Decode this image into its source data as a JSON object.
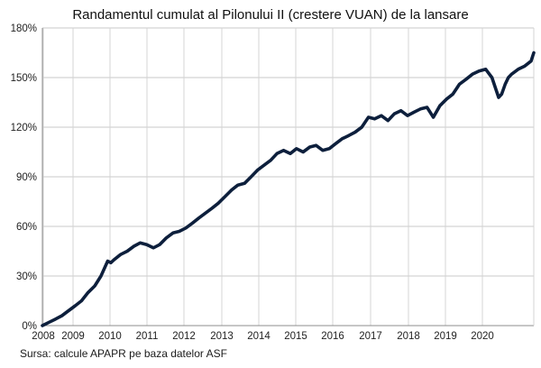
{
  "chart_data": {
    "type": "line",
    "title": "Randamentul cumulat al Pilonului II (crestere VUAN) de la lansare",
    "source": "Sursa: calcule APAPR pe baza datelor ASF",
    "xlabel": "",
    "ylabel": "",
    "x_ticks": [
      "2008",
      "2009",
      "2010",
      "2011",
      "2012",
      "2013",
      "2014",
      "2015",
      "2016",
      "2017",
      "2018",
      "2019",
      "2020"
    ],
    "y_ticks": [
      "0%",
      "30%",
      "60%",
      "90%",
      "120%",
      "150%",
      "180%"
    ],
    "xlim": [
      2008.33,
      2020.9
    ],
    "ylim": [
      0,
      180
    ],
    "grid": true,
    "line_color": "#0d1f3c",
    "series": [
      {
        "x": [
          2008.33,
          2008.5,
          2008.67,
          2008.83,
          2009.0,
          2009.17,
          2009.33,
          2009.5,
          2009.67,
          2009.83,
          2010.0,
          2010.08,
          2010.17,
          2010.33,
          2010.5,
          2010.67,
          2010.83,
          2011.0,
          2011.17,
          2011.33,
          2011.5,
          2011.67,
          2011.83,
          2012.0,
          2012.17,
          2012.33,
          2012.5,
          2012.67,
          2012.83,
          2013.0,
          2013.17,
          2013.33,
          2013.5,
          2013.67,
          2013.83,
          2014.0,
          2014.17,
          2014.33,
          2014.5,
          2014.67,
          2014.83,
          2015.0,
          2015.17,
          2015.33,
          2015.5,
          2015.67,
          2015.83,
          2016.0,
          2016.17,
          2016.33,
          2016.5,
          2016.67,
          2016.83,
          2017.0,
          2017.17,
          2017.33,
          2017.5,
          2017.67,
          2017.83,
          2018.0,
          2018.17,
          2018.33,
          2018.5,
          2018.67,
          2018.83,
          2019.0,
          2019.17,
          2019.33,
          2019.5,
          2019.67,
          2019.83,
          2020.0,
          2020.08,
          2020.17,
          2020.25,
          2020.33,
          2020.5,
          2020.67,
          2020.83,
          2020.9
        ],
        "y": [
          0,
          2,
          4,
          6,
          9,
          12,
          15,
          20,
          24,
          30,
          39,
          38,
          40,
          43,
          45,
          48,
          50,
          49,
          47,
          49,
          53,
          56,
          57,
          59,
          62,
          65,
          68,
          71,
          74,
          78,
          82,
          85,
          86,
          90,
          94,
          97,
          100,
          104,
          106,
          104,
          107,
          105,
          108,
          109,
          106,
          107,
          110,
          113,
          115,
          117,
          120,
          126,
          125,
          127,
          124,
          128,
          130,
          127,
          129,
          131,
          132,
          126,
          133,
          137,
          140,
          146,
          149,
          152,
          154,
          155,
          150,
          138,
          140,
          146,
          150,
          152,
          155,
          157,
          160,
          165
        ]
      }
    ]
  }
}
